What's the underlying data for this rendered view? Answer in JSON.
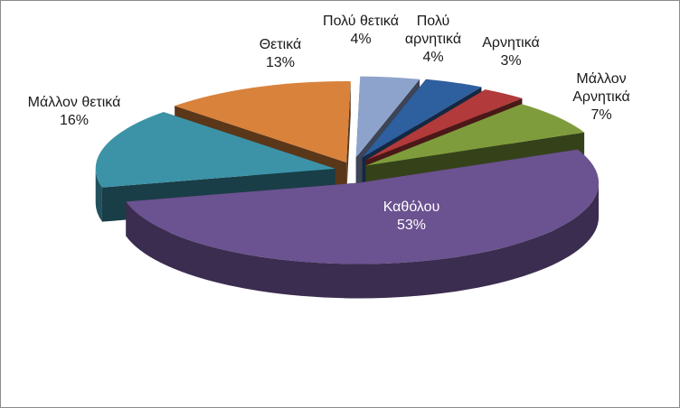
{
  "chart_data": {
    "type": "pie",
    "style": "3d-exploded",
    "slices": [
      {
        "label": "Πολύ θετικά",
        "percent_text": "4%",
        "value": 4,
        "color": "#8ea3cc"
      },
      {
        "label": "Πολύ αρνητικά",
        "percent_text": "4%",
        "value": 4,
        "color": "#2e5f9e"
      },
      {
        "label": "Αρνητικά",
        "percent_text": "3%",
        "value": 3,
        "color": "#b23a3a"
      },
      {
        "label": "Μάλλον Αρνητικά",
        "percent_text": "7%",
        "value": 7,
        "color": "#7f9c3c"
      },
      {
        "label": "Καθόλου",
        "percent_text": "53%",
        "value": 53,
        "color": "#6b5290"
      },
      {
        "label": "Μάλλον θετικά",
        "percent_text": "16%",
        "value": 16,
        "color": "#3c93a8"
      },
      {
        "label": "Θετικά",
        "percent_text": "13%",
        "value": 13,
        "color": "#d9823c"
      }
    ],
    "title": "",
    "legend": "none",
    "data_labels": "outside-category-and-percent"
  }
}
